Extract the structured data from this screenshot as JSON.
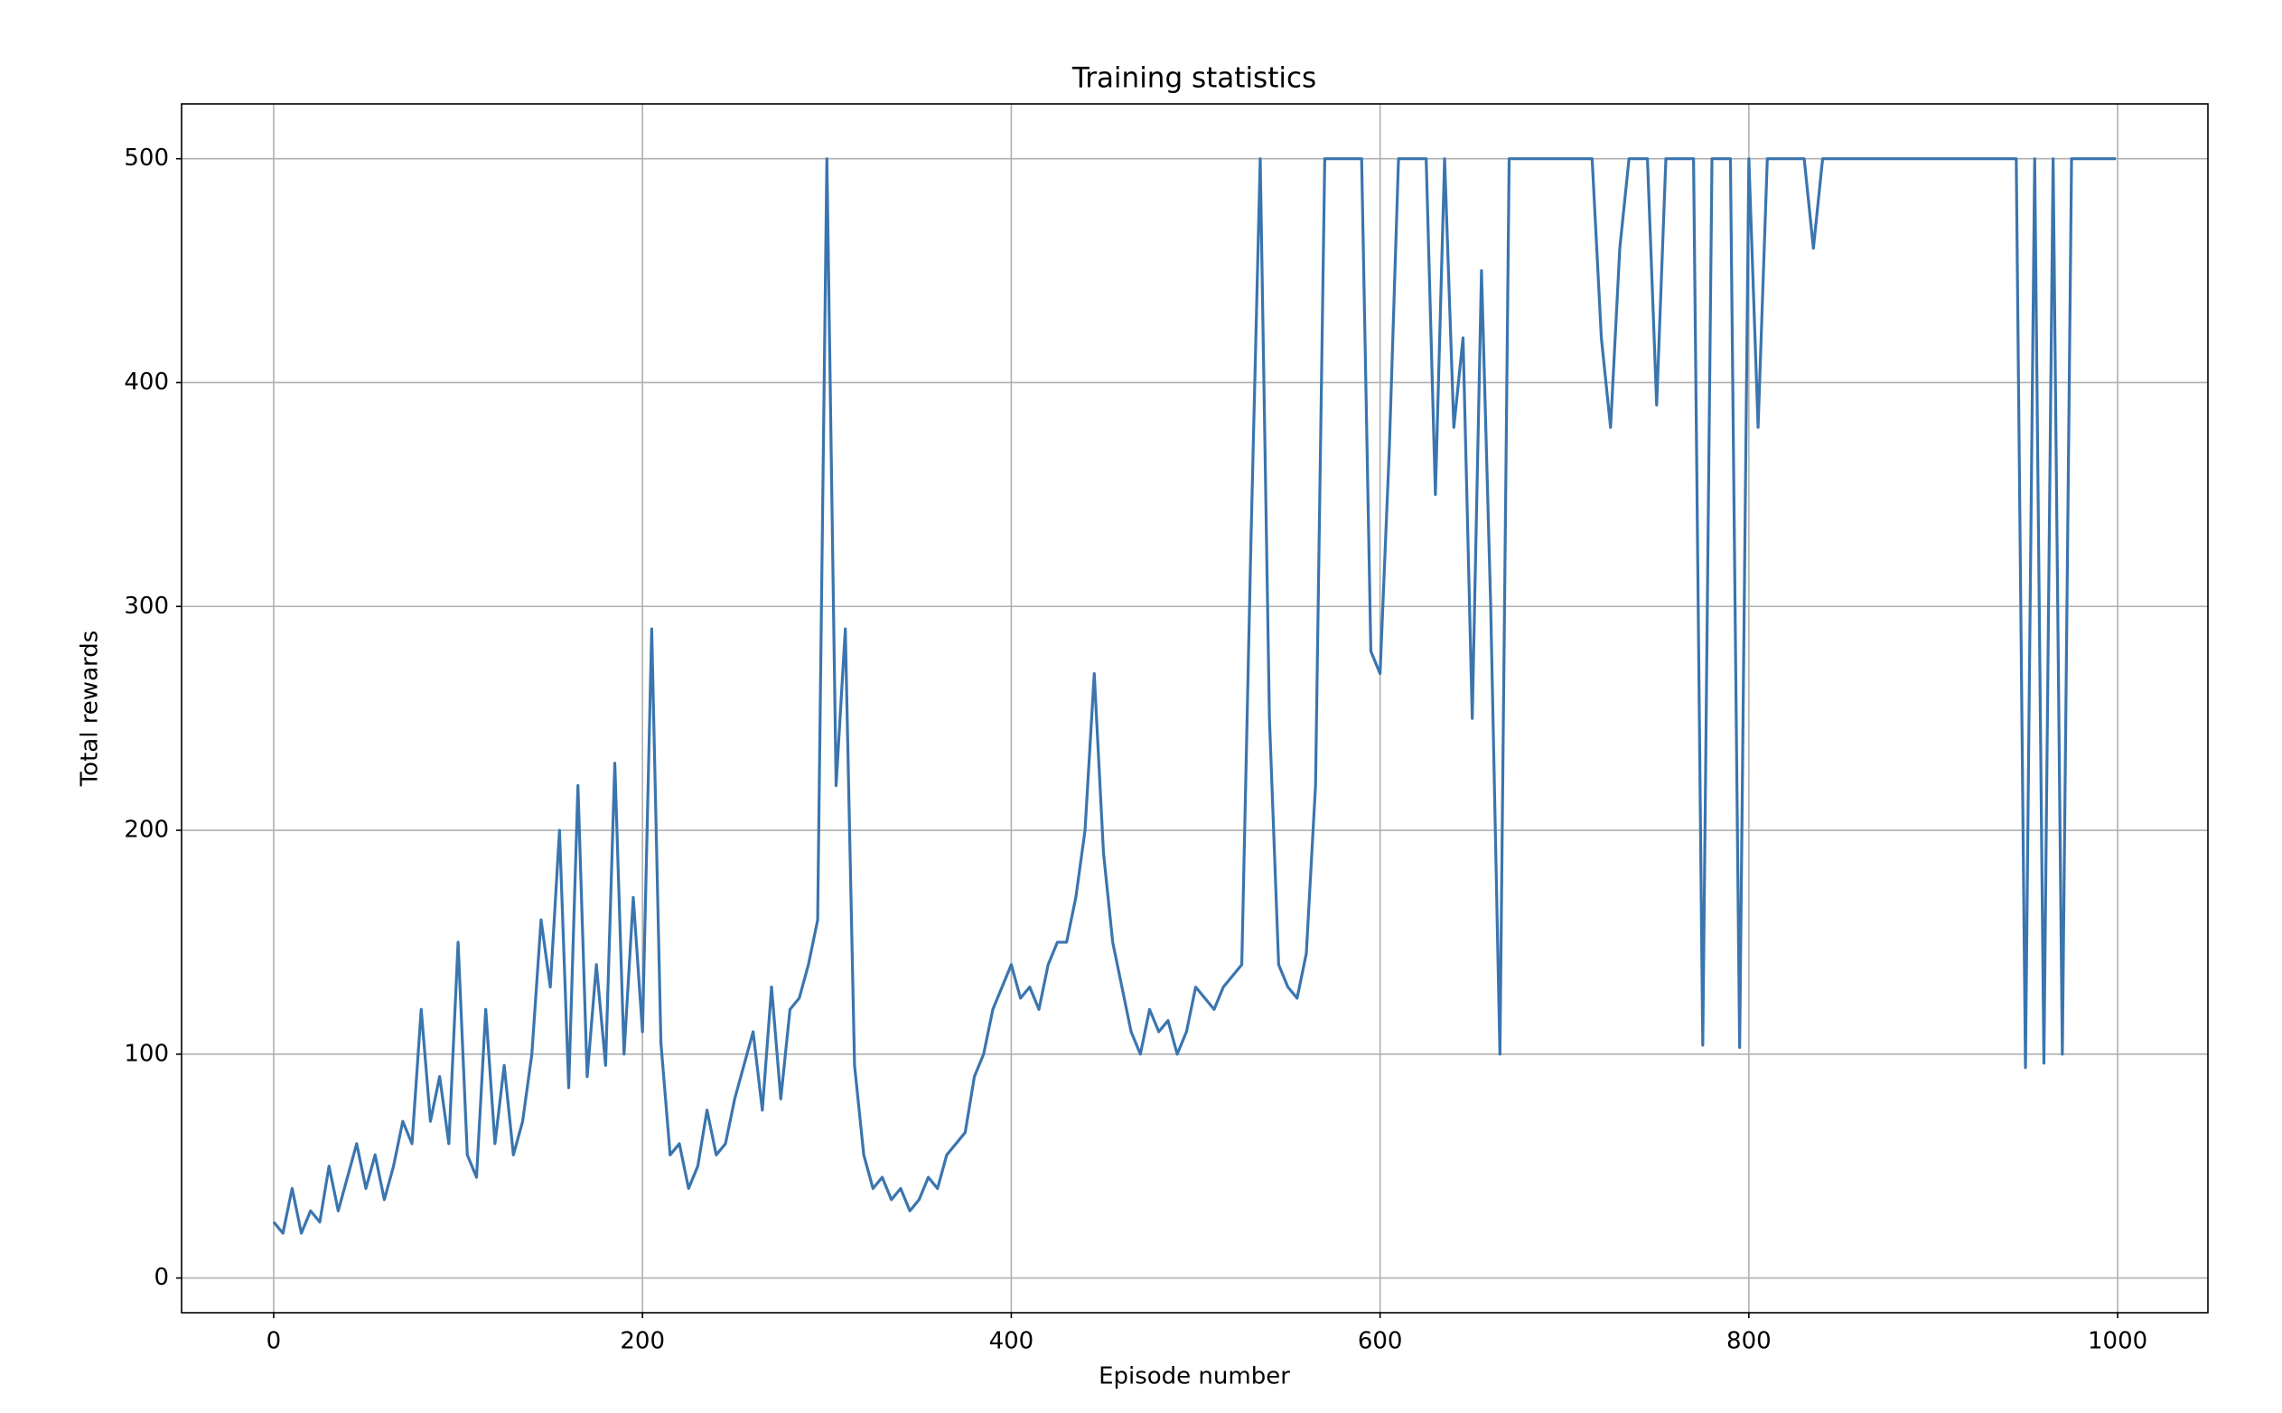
{
  "chart_data": {
    "type": "line",
    "title": "Training statistics",
    "x_label": "Episode number",
    "y_label": "Total rewards",
    "color": "#3a75ae",
    "grid": true,
    "xlim": [
      -49.95,
      1048.95
    ],
    "ylim": [
      -15.5,
      524.5
    ],
    "xticks": [
      0,
      200,
      400,
      600,
      800,
      1000
    ],
    "yticks": [
      0,
      100,
      200,
      300,
      400,
      500
    ],
    "x": [
      0,
      5,
      10,
      15,
      20,
      25,
      30,
      35,
      40,
      45,
      50,
      55,
      60,
      65,
      70,
      75,
      80,
      85,
      90,
      95,
      100,
      105,
      110,
      115,
      120,
      125,
      130,
      135,
      140,
      145,
      150,
      155,
      160,
      165,
      170,
      175,
      180,
      185,
      190,
      195,
      200,
      205,
      210,
      215,
      220,
      225,
      230,
      235,
      240,
      245,
      250,
      255,
      260,
      265,
      270,
      275,
      280,
      285,
      290,
      295,
      300,
      305,
      310,
      315,
      320,
      325,
      330,
      335,
      340,
      345,
      350,
      355,
      360,
      365,
      370,
      375,
      380,
      385,
      390,
      395,
      400,
      405,
      410,
      415,
      420,
      425,
      430,
      435,
      440,
      445,
      450,
      455,
      460,
      465,
      470,
      475,
      480,
      485,
      490,
      495,
      500,
      505,
      510,
      515,
      520,
      525,
      530,
      535,
      540,
      545,
      550,
      555,
      560,
      565,
      570,
      575,
      580,
      585,
      590,
      595,
      600,
      605,
      610,
      615,
      620,
      625,
      630,
      635,
      640,
      645,
      650,
      655,
      660,
      665,
      670,
      675,
      680,
      685,
      690,
      695,
      700,
      705,
      710,
      715,
      720,
      725,
      730,
      735,
      740,
      745,
      750,
      755,
      760,
      765,
      770,
      775,
      780,
      785,
      790,
      795,
      800,
      805,
      810,
      815,
      820,
      825,
      830,
      835,
      840,
      845,
      850,
      855,
      860,
      865,
      870,
      875,
      880,
      885,
      890,
      895,
      900,
      905,
      910,
      915,
      920,
      925,
      930,
      935,
      940,
      945,
      950,
      955,
      960,
      965,
      970,
      975,
      980,
      985,
      990,
      995,
      999
    ],
    "values": [
      25,
      20,
      40,
      20,
      30,
      25,
      50,
      30,
      45,
      60,
      40,
      55,
      35,
      50,
      70,
      60,
      120,
      70,
      90,
      60,
      150,
      55,
      45,
      120,
      60,
      95,
      55,
      70,
      100,
      160,
      130,
      200,
      85,
      220,
      90,
      140,
      95,
      230,
      100,
      170,
      110,
      290,
      105,
      55,
      60,
      40,
      50,
      75,
      55,
      60,
      80,
      95,
      110,
      75,
      130,
      80,
      120,
      125,
      140,
      160,
      500,
      220,
      290,
      95,
      55,
      40,
      45,
      35,
      40,
      30,
      35,
      45,
      40,
      55,
      60,
      65,
      90,
      100,
      120,
      130,
      140,
      125,
      130,
      120,
      140,
      150,
      150,
      170,
      200,
      270,
      190,
      150,
      130,
      110,
      100,
      120,
      110,
      115,
      100,
      110,
      130,
      125,
      120,
      130,
      135,
      140,
      330,
      500,
      250,
      140,
      130,
      125,
      145,
      220,
      500,
      500,
      500,
      500,
      500,
      280,
      270,
      370,
      500,
      500,
      500,
      500,
      350,
      500,
      380,
      420,
      250,
      450,
      300,
      100,
      500,
      500,
      500,
      500,
      500,
      500,
      500,
      500,
      500,
      500,
      420,
      380,
      460,
      500,
      500,
      500,
      390,
      500,
      500,
      500,
      500,
      104,
      500,
      500,
      500,
      103,
      500,
      380,
      500,
      500,
      500,
      500,
      500,
      460,
      500,
      500,
      500,
      500,
      500,
      500,
      500,
      500,
      500,
      500,
      500,
      500,
      500,
      500,
      500,
      500,
      500,
      500,
      500,
      500,
      500,
      500,
      94,
      500,
      96,
      500,
      100,
      500,
      500,
      500,
      500,
      500,
      500
    ]
  }
}
